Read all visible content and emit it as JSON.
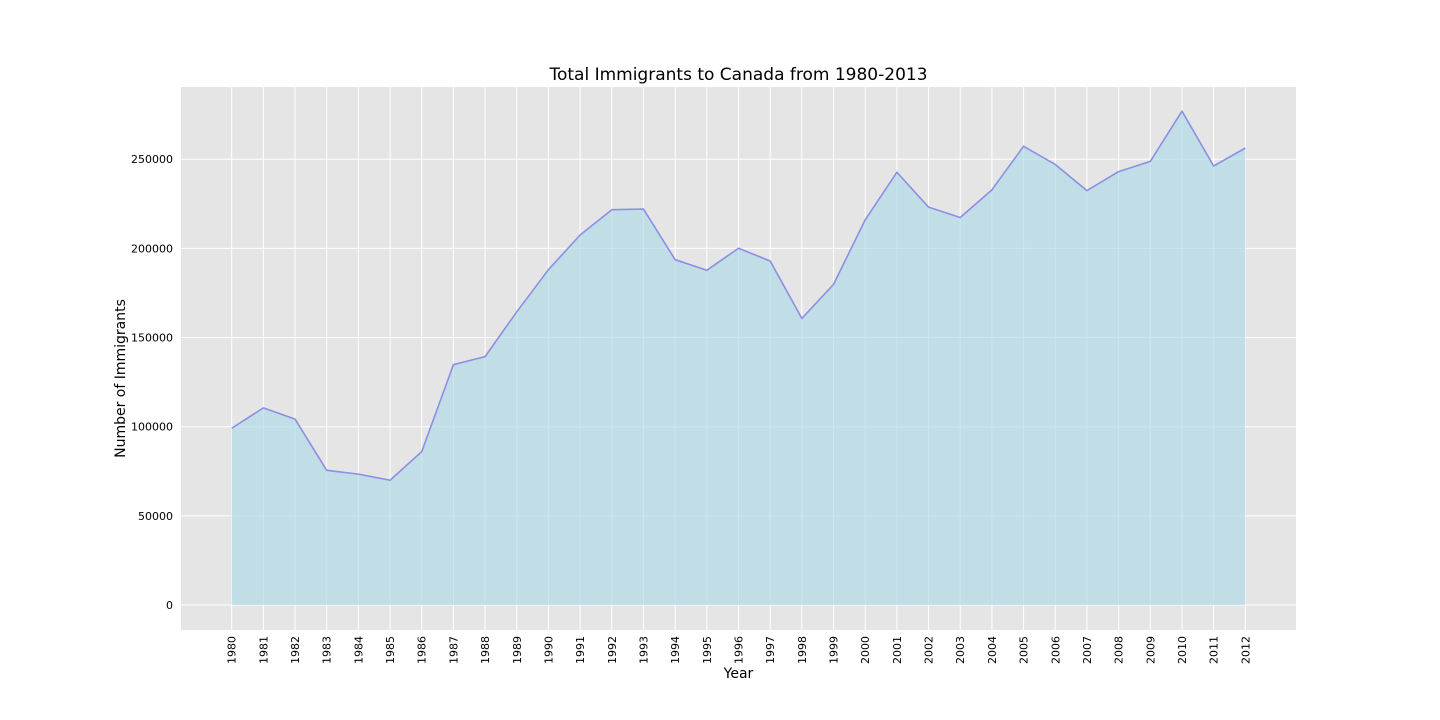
{
  "chart_data": {
    "type": "area",
    "title": "Total Immigrants to Canada from 1980-2013",
    "xlabel": "Year",
    "ylabel": "Number of Immigrants",
    "x": [
      "1980",
      "1981",
      "1982",
      "1983",
      "1984",
      "1985",
      "1986",
      "1987",
      "1988",
      "1989",
      "1990",
      "1991",
      "1992",
      "1993",
      "1994",
      "1995",
      "1996",
      "1997",
      "1998",
      "1999",
      "2000",
      "2001",
      "2002",
      "2003",
      "2004",
      "2005",
      "2006",
      "2007",
      "2008",
      "2009",
      "2010",
      "2011",
      "2012"
    ],
    "series": [
      {
        "values": [
          99137,
          110563,
          104271,
          75550,
          73417,
          69978,
          86048,
          134771,
          139306,
          164432,
          188054,
          207509,
          221687,
          222049,
          193665,
          187712,
          200085,
          192900,
          160727,
          179818,
          216038,
          242690,
          223111,
          217297,
          232831,
          257265,
          247057,
          232405,
          243047,
          248768,
          276956,
          246194,
          256222
        ]
      }
    ],
    "yticks": [
      "0",
      "50000",
      "100000",
      "150000",
      "200000",
      "250000"
    ],
    "ytick_values": [
      0,
      50000,
      100000,
      150000,
      200000,
      250000
    ],
    "ylim": [
      -14000,
      290500
    ],
    "xlim_padding": 1.6,
    "x_tick_rotation": "vertical",
    "grid": true,
    "legend": "none",
    "colors": {
      "background": "#ffffff",
      "plot_background": "#e5e5e5",
      "grid": "#ffffff",
      "line": "#8c8fe3",
      "fill": "#add8e6",
      "fill_opacity": 0.65
    }
  }
}
